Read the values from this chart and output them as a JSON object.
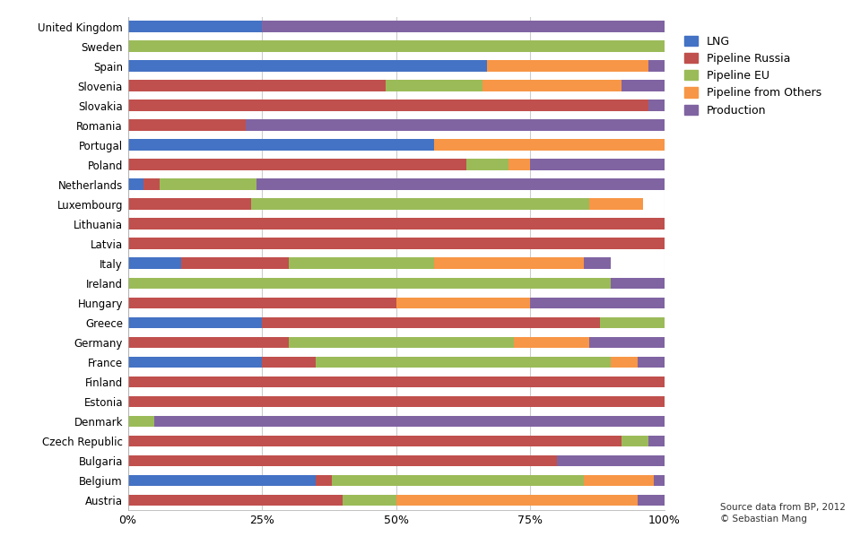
{
  "countries": [
    "United Kingdom",
    "Sweden",
    "Spain",
    "Slovenia",
    "Slovakia",
    "Romania",
    "Portugal",
    "Poland",
    "Netherlands",
    "Luxembourg",
    "Lithuania",
    "Latvia",
    "Italy",
    "Ireland",
    "Hungary",
    "Greece",
    "Germany",
    "France",
    "Finland",
    "Estonia",
    "Denmark",
    "Czech Republic",
    "Bulgaria",
    "Belgium",
    "Austria"
  ],
  "series": {
    "LNG": [
      25,
      0,
      67,
      0,
      0,
      0,
      57,
      0,
      3,
      0,
      0,
      0,
      10,
      0,
      0,
      25,
      0,
      25,
      0,
      0,
      0,
      0,
      0,
      35,
      0
    ],
    "Pipeline Russia": [
      0,
      0,
      0,
      48,
      97,
      22,
      0,
      63,
      3,
      23,
      100,
      100,
      20,
      0,
      50,
      63,
      30,
      10,
      100,
      100,
      0,
      92,
      80,
      3,
      40
    ],
    "Pipeline EU": [
      0,
      100,
      0,
      18,
      0,
      0,
      0,
      8,
      18,
      63,
      0,
      0,
      27,
      90,
      0,
      12,
      42,
      55,
      0,
      0,
      5,
      5,
      0,
      47,
      10
    ],
    "Pipeline from Others": [
      0,
      0,
      30,
      26,
      0,
      0,
      43,
      4,
      0,
      10,
      0,
      0,
      28,
      0,
      25,
      0,
      14,
      5,
      0,
      0,
      0,
      0,
      0,
      13,
      45
    ],
    "Production": [
      75,
      0,
      3,
      8,
      3,
      78,
      0,
      25,
      76,
      0,
      0,
      0,
      5,
      10,
      25,
      0,
      14,
      5,
      0,
      0,
      95,
      3,
      20,
      2,
      5
    ]
  },
  "colors": {
    "LNG": "#4472C4",
    "Pipeline Russia": "#C0504D",
    "Pipeline EU": "#9BBB59",
    "Pipeline from Others": "#F79646",
    "Production": "#8064A2"
  },
  "series_order": [
    "LNG",
    "Pipeline Russia",
    "Pipeline EU",
    "Pipeline from Others",
    "Production"
  ],
  "source_text": "Source data from BP, 2012\n© Sebastian Mang",
  "background_color": "#ffffff",
  "plot_bg_color": "#ffffff",
  "grid_color": "#cccccc",
  "bar_height": 0.55,
  "figsize": [
    9.5,
    6.18
  ],
  "dpi": 100
}
